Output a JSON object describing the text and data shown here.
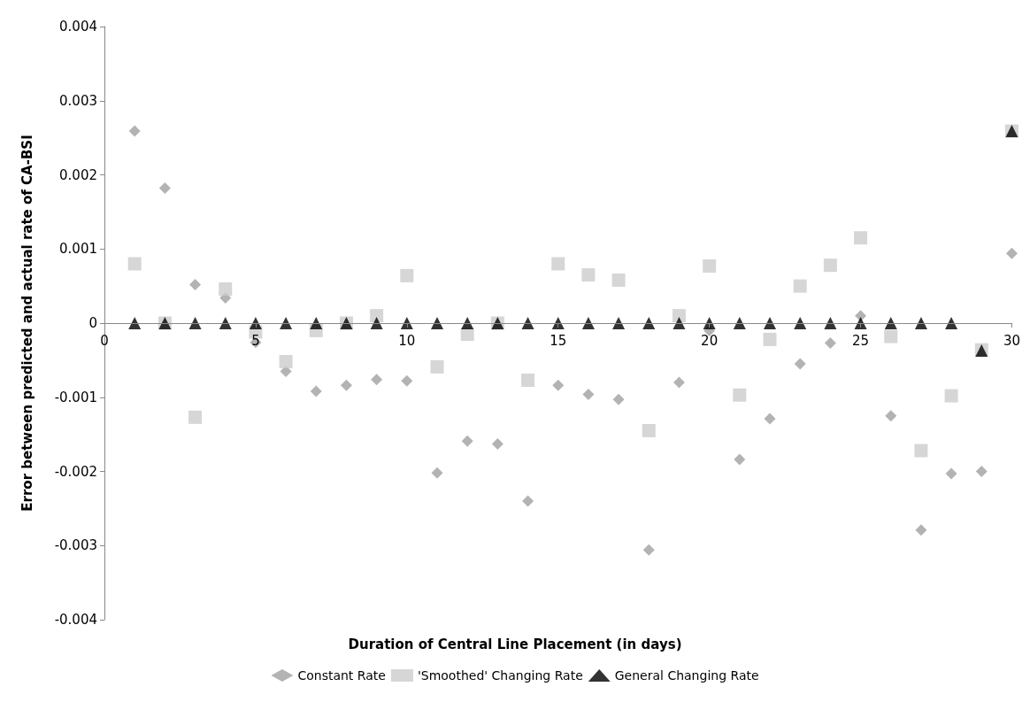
{
  "chart_data": {
    "type": "scatter",
    "xlabel": "Duration of Central Line Placement (in days)",
    "ylabel": "Error between predicted and actual rate of CA-BSI",
    "x": [
      1,
      2,
      3,
      4,
      5,
      6,
      7,
      8,
      9,
      10,
      11,
      12,
      13,
      14,
      15,
      16,
      17,
      18,
      19,
      20,
      21,
      22,
      23,
      24,
      25,
      26,
      27,
      28,
      29,
      30
    ],
    "series": [
      {
        "name": "Constant Rate",
        "color": "#a0a0a0",
        "marker": "diamond",
        "values": [
          0.00259,
          0.00182,
          0.00052,
          0.00034,
          -0.00026,
          -0.00065,
          -0.00092,
          -0.00084,
          -0.00076,
          -0.00078,
          -0.00202,
          -0.00159,
          -0.00163,
          -0.0024,
          -0.00084,
          -0.00096,
          -0.00103,
          -0.00306,
          -0.0008,
          -0.0001,
          -0.00184,
          -0.00129,
          -0.00055,
          -0.00027,
          0.0001,
          -0.00125,
          -0.00279,
          -0.00203,
          -0.002,
          0.00094
        ]
      },
      {
        "name": "'Smoothed' Changing Rate",
        "color": "#cccccc",
        "marker": "square",
        "values": [
          0.0008,
          0,
          -0.00127,
          0.00046,
          -0.00012,
          -0.00052,
          -0.0001,
          0,
          0.0001,
          0.00064,
          -0.00059,
          -0.00015,
          0,
          -0.00077,
          0.0008,
          0.00065,
          0.00058,
          -0.00145,
          0.0001,
          0.00077,
          -0.00097,
          -0.00022,
          0.0005,
          0.00078,
          0.00115,
          -0.00018,
          -0.00172,
          -0.00098,
          -0.00036,
          0.00259
        ]
      },
      {
        "name": "General Changing Rate",
        "color": "#000000",
        "marker": "triangle",
        "values": [
          0,
          0,
          0,
          0,
          0,
          0,
          0,
          0,
          0,
          0,
          0,
          0,
          0,
          0,
          0,
          0,
          0,
          0,
          0,
          0,
          0,
          0,
          0,
          0,
          0,
          0,
          0,
          0,
          -0.00037,
          0.00259
        ]
      }
    ],
    "xlim": [
      0,
      30
    ],
    "xticks": [
      0,
      5,
      10,
      15,
      20,
      25,
      30
    ],
    "ylim": [
      -0.004,
      0.004
    ],
    "yticks": [
      -0.004,
      -0.003,
      -0.002,
      -0.001,
      0,
      0.001,
      0.002,
      0.003,
      0.004
    ],
    "grid": false,
    "legend": "bottom"
  }
}
